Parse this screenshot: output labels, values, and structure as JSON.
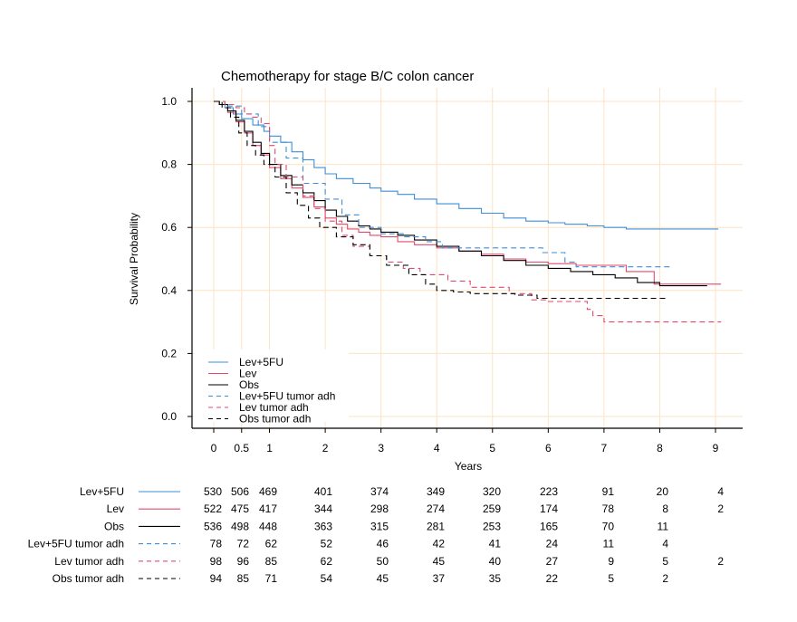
{
  "chart_data": {
    "type": "line",
    "title": "Chemotherapy for stage B/C colon cancer",
    "xlabel": "Years",
    "ylabel": "Survival Probability",
    "xlim": [
      -0.35,
      9.5
    ],
    "ylim": [
      -0.04,
      1.03
    ],
    "x_ticks": [
      {
        "value": 0,
        "label": "0"
      },
      {
        "value": 0.5,
        "label": "0.5"
      },
      {
        "value": 1,
        "label": "1"
      },
      {
        "value": 2,
        "label": "2"
      },
      {
        "value": 3,
        "label": "3"
      },
      {
        "value": 4,
        "label": "4"
      },
      {
        "value": 5,
        "label": "5"
      },
      {
        "value": 6,
        "label": "6"
      },
      {
        "value": 7,
        "label": "7"
      },
      {
        "value": 8,
        "label": "8"
      },
      {
        "value": 9,
        "label": "9"
      }
    ],
    "y_ticks": [
      {
        "value": 0.0,
        "label": "0.0"
      },
      {
        "value": 0.2,
        "label": "0.2"
      },
      {
        "value": 0.4,
        "label": "0.4"
      },
      {
        "value": 0.6,
        "label": "0.6"
      },
      {
        "value": 0.8,
        "label": "0.8"
      },
      {
        "value": 1.0,
        "label": "1.0"
      }
    ],
    "grid": true,
    "grid_color": "#fde3c4",
    "legend_position": "bottom-left",
    "series": [
      {
        "name": "Lev+5FU",
        "color": "#3d8fd9",
        "dash": "solid",
        "points": [
          [
            0,
            1.0
          ],
          [
            0.1,
            0.99
          ],
          [
            0.2,
            0.98
          ],
          [
            0.35,
            0.96
          ],
          [
            0.5,
            0.945
          ],
          [
            0.7,
            0.925
          ],
          [
            0.9,
            0.905
          ],
          [
            1.0,
            0.89
          ],
          [
            1.2,
            0.87
          ],
          [
            1.4,
            0.84
          ],
          [
            1.6,
            0.815
          ],
          [
            1.8,
            0.79
          ],
          [
            2.0,
            0.77
          ],
          [
            2.2,
            0.755
          ],
          [
            2.5,
            0.74
          ],
          [
            2.8,
            0.725
          ],
          [
            3.0,
            0.715
          ],
          [
            3.3,
            0.705
          ],
          [
            3.6,
            0.69
          ],
          [
            4.0,
            0.675
          ],
          [
            4.4,
            0.66
          ],
          [
            4.8,
            0.645
          ],
          [
            5.2,
            0.63
          ],
          [
            5.6,
            0.62
          ],
          [
            6.0,
            0.615
          ],
          [
            6.3,
            0.61
          ],
          [
            6.7,
            0.605
          ],
          [
            7.0,
            0.6
          ],
          [
            7.4,
            0.595
          ],
          [
            8.0,
            0.595
          ],
          [
            9.05,
            0.595
          ]
        ]
      },
      {
        "name": "Lev",
        "color": "#e04a6e",
        "dash": "solid",
        "points": [
          [
            0,
            1.0
          ],
          [
            0.1,
            0.99
          ],
          [
            0.25,
            0.965
          ],
          [
            0.4,
            0.935
          ],
          [
            0.55,
            0.9
          ],
          [
            0.7,
            0.86
          ],
          [
            0.85,
            0.83
          ],
          [
            1.0,
            0.79
          ],
          [
            1.2,
            0.755
          ],
          [
            1.4,
            0.725
          ],
          [
            1.6,
            0.695
          ],
          [
            1.8,
            0.665
          ],
          [
            2.0,
            0.63
          ],
          [
            2.2,
            0.61
          ],
          [
            2.4,
            0.595
          ],
          [
            2.6,
            0.585
          ],
          [
            2.8,
            0.575
          ],
          [
            3.0,
            0.57
          ],
          [
            3.3,
            0.555
          ],
          [
            3.6,
            0.545
          ],
          [
            4.0,
            0.535
          ],
          [
            4.4,
            0.525
          ],
          [
            4.8,
            0.515
          ],
          [
            5.2,
            0.5
          ],
          [
            5.6,
            0.49
          ],
          [
            6.0,
            0.485
          ],
          [
            6.5,
            0.48
          ],
          [
            7.0,
            0.48
          ],
          [
            7.4,
            0.46
          ],
          [
            7.6,
            0.46
          ],
          [
            7.9,
            0.46
          ],
          [
            7.9,
            0.42
          ],
          [
            9.1,
            0.42
          ]
        ]
      },
      {
        "name": "Obs",
        "color": "#000000",
        "dash": "solid",
        "points": [
          [
            0,
            1.0
          ],
          [
            0.1,
            0.99
          ],
          [
            0.25,
            0.97
          ],
          [
            0.4,
            0.94
          ],
          [
            0.55,
            0.905
          ],
          [
            0.7,
            0.87
          ],
          [
            0.85,
            0.835
          ],
          [
            1.0,
            0.8
          ],
          [
            1.2,
            0.765
          ],
          [
            1.4,
            0.735
          ],
          [
            1.6,
            0.71
          ],
          [
            1.8,
            0.685
          ],
          [
            2.0,
            0.655
          ],
          [
            2.2,
            0.635
          ],
          [
            2.4,
            0.62
          ],
          [
            2.6,
            0.605
          ],
          [
            2.8,
            0.595
          ],
          [
            3.0,
            0.585
          ],
          [
            3.3,
            0.575
          ],
          [
            3.6,
            0.56
          ],
          [
            4.0,
            0.54
          ],
          [
            4.4,
            0.525
          ],
          [
            4.8,
            0.51
          ],
          [
            5.2,
            0.495
          ],
          [
            5.6,
            0.48
          ],
          [
            6.0,
            0.47
          ],
          [
            6.4,
            0.46
          ],
          [
            6.8,
            0.45
          ],
          [
            7.2,
            0.44
          ],
          [
            7.6,
            0.425
          ],
          [
            8.0,
            0.415
          ],
          [
            8.5,
            0.415
          ],
          [
            8.85,
            0.415
          ]
        ]
      },
      {
        "name": "Lev+5FU tumor adh",
        "color": "#3d8fd9",
        "dash": "dashed",
        "points": [
          [
            0,
            1.0
          ],
          [
            0.2,
            0.985
          ],
          [
            0.5,
            0.96
          ],
          [
            0.8,
            0.92
          ],
          [
            1.0,
            0.87
          ],
          [
            1.3,
            0.82
          ],
          [
            1.6,
            0.74
          ],
          [
            2.0,
            0.69
          ],
          [
            2.3,
            0.64
          ],
          [
            2.6,
            0.6
          ],
          [
            3.0,
            0.58
          ],
          [
            3.4,
            0.57
          ],
          [
            3.8,
            0.555
          ],
          [
            4.1,
            0.535
          ],
          [
            4.6,
            0.535
          ],
          [
            5.0,
            0.535
          ],
          [
            5.5,
            0.535
          ],
          [
            5.9,
            0.52
          ],
          [
            6.3,
            0.49
          ],
          [
            6.5,
            0.475
          ],
          [
            7.0,
            0.475
          ],
          [
            8.2,
            0.475
          ]
        ]
      },
      {
        "name": "Lev tumor adh",
        "color": "#e04a6e",
        "dash": "dashed",
        "points": [
          [
            0,
            1.0
          ],
          [
            0.2,
            0.99
          ],
          [
            0.4,
            0.98
          ],
          [
            0.55,
            0.96
          ],
          [
            0.7,
            0.95
          ],
          [
            0.85,
            0.93
          ],
          [
            1.0,
            0.86
          ],
          [
            1.1,
            0.8
          ],
          [
            1.3,
            0.76
          ],
          [
            1.6,
            0.7
          ],
          [
            1.8,
            0.66
          ],
          [
            2.0,
            0.62
          ],
          [
            2.3,
            0.575
          ],
          [
            2.5,
            0.54
          ],
          [
            2.8,
            0.51
          ],
          [
            3.1,
            0.49
          ],
          [
            3.4,
            0.47
          ],
          [
            3.7,
            0.45
          ],
          [
            4.0,
            0.45
          ],
          [
            4.2,
            0.43
          ],
          [
            4.6,
            0.41
          ],
          [
            5.0,
            0.41
          ],
          [
            5.3,
            0.39
          ],
          [
            5.7,
            0.37
          ],
          [
            6.0,
            0.365
          ],
          [
            6.5,
            0.365
          ],
          [
            6.7,
            0.34
          ],
          [
            6.8,
            0.32
          ],
          [
            7.0,
            0.3
          ],
          [
            7.5,
            0.3
          ],
          [
            8.0,
            0.3
          ],
          [
            9.1,
            0.3
          ]
        ]
      },
      {
        "name": "Obs tumor adh",
        "color": "#000000",
        "dash": "dashed",
        "points": [
          [
            0,
            1.0
          ],
          [
            0.15,
            0.98
          ],
          [
            0.3,
            0.95
          ],
          [
            0.45,
            0.9
          ],
          [
            0.6,
            0.86
          ],
          [
            0.75,
            0.83
          ],
          [
            0.9,
            0.8
          ],
          [
            1.1,
            0.76
          ],
          [
            1.3,
            0.71
          ],
          [
            1.5,
            0.67
          ],
          [
            1.7,
            0.63
          ],
          [
            1.9,
            0.6
          ],
          [
            2.2,
            0.57
          ],
          [
            2.5,
            0.545
          ],
          [
            2.8,
            0.51
          ],
          [
            3.1,
            0.48
          ],
          [
            3.5,
            0.45
          ],
          [
            3.8,
            0.42
          ],
          [
            4.0,
            0.4
          ],
          [
            4.3,
            0.395
          ],
          [
            4.6,
            0.39
          ],
          [
            5.0,
            0.39
          ],
          [
            5.4,
            0.385
          ],
          [
            5.8,
            0.375
          ],
          [
            6.2,
            0.375
          ],
          [
            6.6,
            0.375
          ],
          [
            7.0,
            0.375
          ],
          [
            7.4,
            0.375
          ],
          [
            8.15,
            0.375
          ]
        ]
      }
    ],
    "risk_table": {
      "columns": [
        "0",
        "0.5",
        "1",
        "2",
        "3",
        "4",
        "5",
        "6",
        "7",
        "8",
        "9"
      ],
      "rows": [
        {
          "name": "Lev+5FU",
          "color": "#3d8fd9",
          "dash": "solid",
          "values": [
            "530",
            "506",
            "469",
            "401",
            "374",
            "349",
            "320",
            "223",
            "91",
            "20",
            "4"
          ]
        },
        {
          "name": "Lev",
          "color": "#e04a6e",
          "dash": "solid",
          "values": [
            "522",
            "475",
            "417",
            "344",
            "298",
            "274",
            "259",
            "174",
            "78",
            "8",
            "2"
          ]
        },
        {
          "name": "Obs",
          "color": "#000000",
          "dash": "solid",
          "values": [
            "536",
            "498",
            "448",
            "363",
            "315",
            "281",
            "253",
            "165",
            "70",
            "11",
            ""
          ]
        },
        {
          "name": "Lev+5FU tumor adh",
          "color": "#3d8fd9",
          "dash": "dashed",
          "values": [
            "78",
            "72",
            "62",
            "52",
            "46",
            "42",
            "41",
            "24",
            "11",
            "4",
            ""
          ]
        },
        {
          "name": "Lev tumor adh",
          "color": "#e04a6e",
          "dash": "dashed",
          "values": [
            "98",
            "96",
            "85",
            "62",
            "50",
            "45",
            "40",
            "27",
            "9",
            "5",
            "2"
          ]
        },
        {
          "name": "Obs tumor adh",
          "color": "#000000",
          "dash": "dashed",
          "values": [
            "94",
            "85",
            "71",
            "54",
            "45",
            "37",
            "35",
            "22",
            "5",
            "2",
            ""
          ]
        }
      ]
    }
  }
}
